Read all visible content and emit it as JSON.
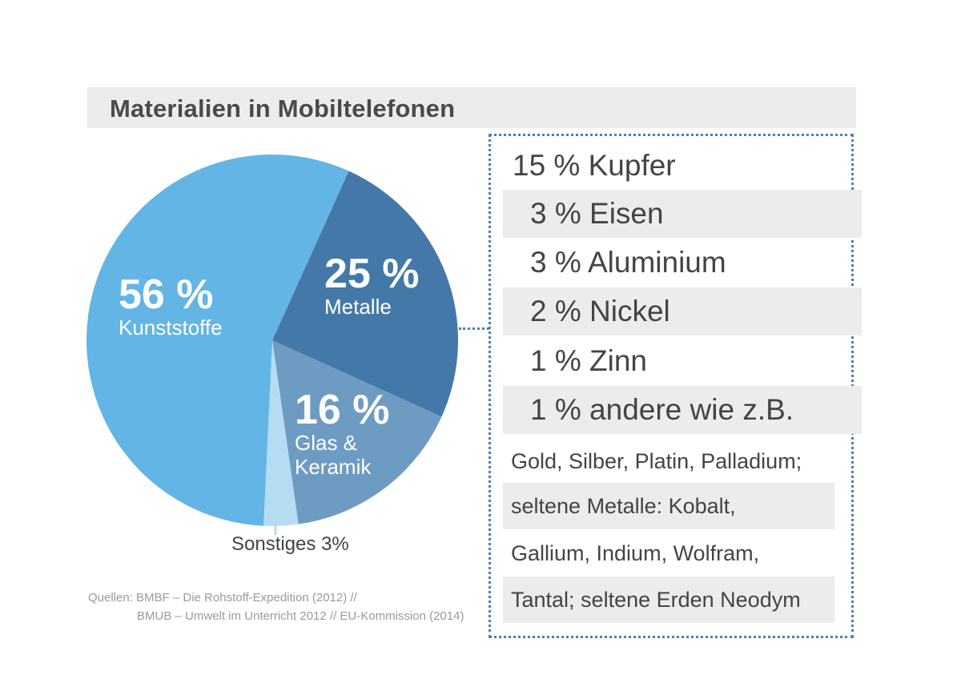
{
  "chart_data": {
    "type": "pie",
    "title": "Materialien in Mobiltelefonen",
    "slices": [
      {
        "name": "Metalle",
        "value": 25,
        "label": "25 %",
        "color": "#4478a8"
      },
      {
        "name": "Glas & Keramik",
        "value": 16,
        "label": "16 %",
        "color": "#6e9bc2"
      },
      {
        "name": "Sonstiges",
        "value": 3,
        "label": "Sonstiges 3%",
        "color": "#b5dcf2"
      },
      {
        "name": "Kunststoffe",
        "value": 56,
        "label": "56 %",
        "color": "#62b5e5"
      }
    ],
    "labels": {
      "metalle_pct": "25 %",
      "metalle_name": "Metalle",
      "glas_pct": "16 %",
      "glas_name1": "Glas &",
      "glas_name2": "Keramik",
      "kunst_pct": "56 %",
      "kunst_name": "Kunststoffe",
      "sonstiges": "Sonstiges 3%"
    },
    "metal_breakdown": [
      {
        "value": 15,
        "text": "15 % Kupfer"
      },
      {
        "value": 3,
        "text": "3 % Eisen"
      },
      {
        "value": 3,
        "text": "3 % Aluminium"
      },
      {
        "value": 2,
        "text": "2 % Nickel"
      },
      {
        "value": 1,
        "text": "1 % Zinn"
      },
      {
        "value": 1,
        "text": "1 % andere wie z.B."
      }
    ],
    "other_metals_lines": [
      "Gold, Silber, Platin, Palladium;",
      "seltene Metalle: Kobalt,",
      "Gallium, Indium, Wolfram,",
      "Tantal; seltene Erden Neodym"
    ]
  },
  "sources": {
    "line1": "Quellen: BMBF – Die Rohstoff-Expedition (2012) //",
    "line2": "BMUB – Umwelt im Unterricht 2012 // EU-Kommission (2014)"
  },
  "accent_color": "#4a7fb5"
}
